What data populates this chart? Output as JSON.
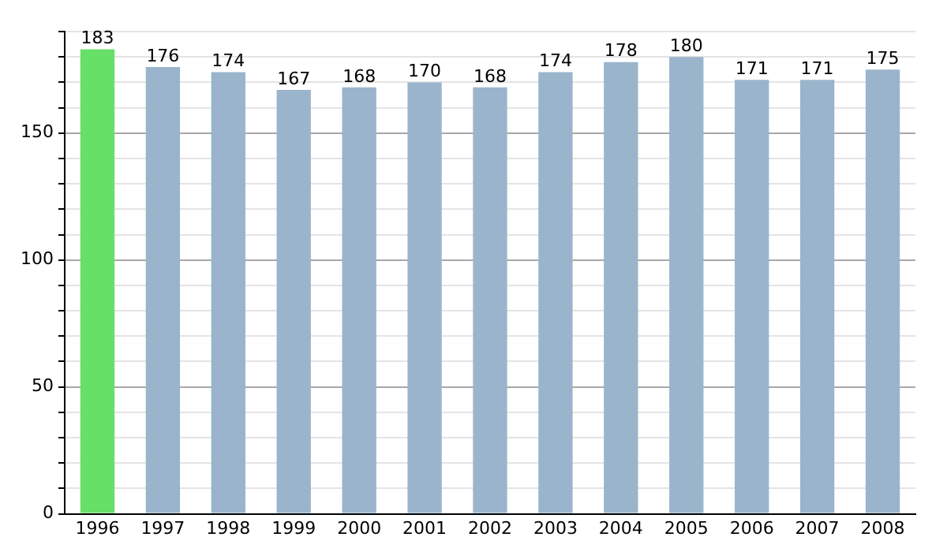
{
  "chart_data": {
    "type": "bar",
    "categories": [
      "1996",
      "1997",
      "1998",
      "1999",
      "2000",
      "2001",
      "2002",
      "2003",
      "2004",
      "2005",
      "2006",
      "2007",
      "2008"
    ],
    "values": [
      183,
      176,
      174,
      167,
      168,
      170,
      168,
      174,
      178,
      180,
      171,
      171,
      175
    ],
    "colors": [
      "#66e066",
      "#9ab4cc",
      "#9ab4cc",
      "#9ab4cc",
      "#9ab4cc",
      "#9ab4cc",
      "#9ab4cc",
      "#9ab4cc",
      "#9ab4cc",
      "#9ab4cc",
      "#9ab4cc",
      "#9ab4cc",
      "#9ab4cc"
    ],
    "ylim": [
      0,
      190
    ],
    "yticks": [
      0,
      {
        "value": 10,
        "label": null
      },
      {
        "value": 20,
        "label": null
      },
      {
        "value": 30,
        "label": null
      },
      {
        "value": 40,
        "label": null
      },
      50,
      {
        "value": 60,
        "label": null
      },
      {
        "value": 70,
        "label": null
      },
      {
        "value": 80,
        "label": null
      },
      {
        "value": 90,
        "label": null
      },
      100,
      {
        "value": 110,
        "label": null
      },
      {
        "value": 120,
        "label": null
      },
      {
        "value": 130,
        "label": null
      },
      {
        "value": 140,
        "label": null
      },
      150,
      {
        "value": 160,
        "label": null
      },
      {
        "value": 170,
        "label": null
      },
      {
        "value": 180,
        "label": null
      },
      {
        "value": 190,
        "label": null
      }
    ],
    "grid": "y",
    "data_labels": true
  }
}
